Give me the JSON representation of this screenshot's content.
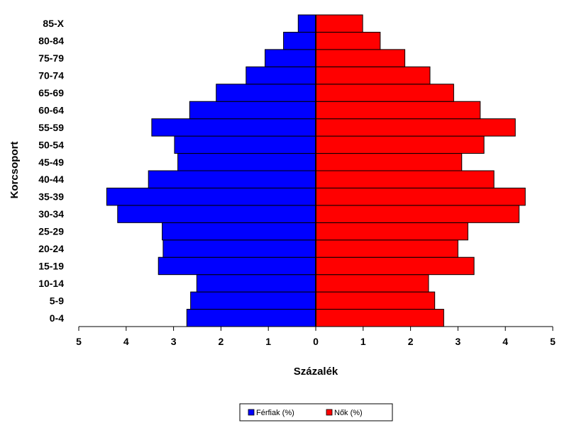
{
  "chart_data": {
    "type": "bar",
    "orientation": "horizontal",
    "layout": "population-pyramid",
    "title": "",
    "xlabel": "Százalék",
    "ylabel": "Korcsoport",
    "xlim": [
      -5,
      5
    ],
    "x_ticks": [
      -5,
      -4,
      -3,
      -2,
      -1,
      0,
      1,
      2,
      3,
      4,
      5
    ],
    "x_tick_labels": [
      "5",
      "4",
      "3",
      "2",
      "1",
      "0",
      "1",
      "2",
      "3",
      "4",
      "5"
    ],
    "grid": false,
    "legend_position": "bottom-center",
    "categories": [
      "0-4",
      "5-9",
      "10-14",
      "15-19",
      "20-24",
      "25-29",
      "30-34",
      "35-39",
      "40-44",
      "45-49",
      "50-54",
      "55-59",
      "60-64",
      "65-69",
      "70-74",
      "75-79",
      "80-84",
      "85-X"
    ],
    "series": [
      {
        "name": "Férfiak (%)",
        "color": "#0000ff",
        "values": [
          2.72,
          2.64,
          2.51,
          3.32,
          3.22,
          3.24,
          4.18,
          4.41,
          3.53,
          2.91,
          2.98,
          3.46,
          2.66,
          2.1,
          1.47,
          1.07,
          0.68,
          0.37
        ]
      },
      {
        "name": "Nők (%)",
        "color": "#ff0000",
        "values": [
          2.7,
          2.51,
          2.38,
          3.34,
          3.0,
          3.21,
          4.29,
          4.42,
          3.76,
          3.08,
          3.55,
          4.21,
          3.47,
          2.91,
          2.41,
          1.88,
          1.36,
          0.99
        ]
      }
    ]
  }
}
